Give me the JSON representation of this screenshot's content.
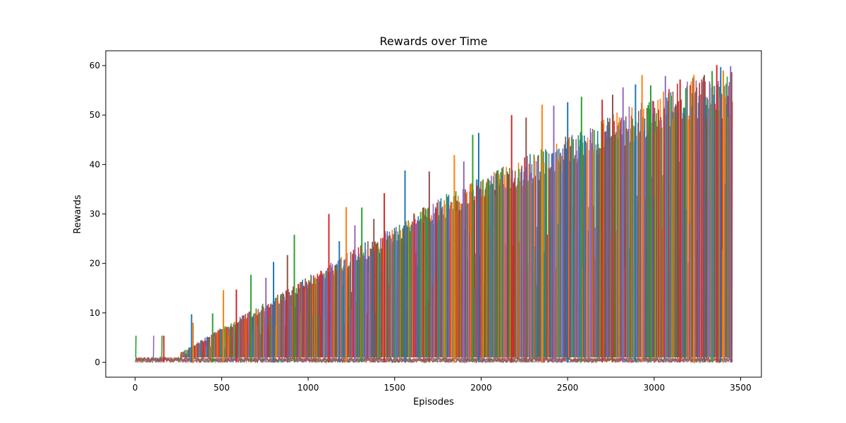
{
  "chart_data": {
    "type": "line",
    "title": "Rewards over Time",
    "xlabel": "Episodes",
    "ylabel": "Rewards",
    "xlim": [
      -170,
      3620
    ],
    "ylim": [
      -3,
      63
    ],
    "xticks": [
      0,
      500,
      1000,
      1500,
      2000,
      2500,
      3000,
      3500
    ],
    "xtick_labels": [
      "0",
      "500",
      "1000",
      "1500",
      "2000",
      "2500",
      "3000",
      "3500"
    ],
    "yticks": [
      0,
      10,
      20,
      30,
      40,
      50,
      60
    ],
    "ytick_labels": [
      "0",
      "10",
      "20",
      "30",
      "40",
      "50",
      "60"
    ],
    "grid": false,
    "legend": "none",
    "colors": [
      "#1f77b4",
      "#ff7f0e",
      "#2ca02c",
      "#d62728",
      "#9467bd",
      "#8c564b"
    ],
    "episode_range": [
      0,
      3450
    ],
    "baseline_band": [
      0,
      1
    ],
    "series": [
      {
        "color": "#1f77b4",
        "spikes": [
          [
            326,
            9.7
          ],
          [
            800,
            20.3
          ],
          [
            1180,
            24.5
          ],
          [
            1560,
            38.8
          ],
          [
            1986,
            46.4
          ],
          [
            2500,
            52.6
          ],
          [
            2892,
            56.2
          ],
          [
            3385,
            59.7
          ]
        ]
      },
      {
        "color": "#ff7f0e",
        "spikes": [
          [
            335,
            8.0
          ],
          [
            510,
            14.6
          ],
          [
            1220,
            31.4
          ],
          [
            1845,
            41.9
          ],
          [
            2352,
            52.1
          ],
          [
            2930,
            58.1
          ],
          [
            3230,
            58.1
          ],
          [
            3400,
            59.0
          ]
        ]
      },
      {
        "color": "#2ca02c",
        "spikes": [
          [
            448,
            9.9
          ],
          [
            669,
            17.7
          ],
          [
            920,
            25.8
          ],
          [
            1310,
            31.3
          ],
          [
            1951,
            46.0
          ],
          [
            2580,
            53.7
          ],
          [
            2980,
            56.0
          ],
          [
            3335,
            58.9
          ]
        ]
      },
      {
        "color": "#d62728",
        "spikes": [
          [
            166,
            5.4
          ],
          [
            585,
            14.7
          ],
          [
            1120,
            30.0
          ],
          [
            1440,
            34.2
          ],
          [
            2176,
            50.0
          ],
          [
            2700,
            53.1
          ],
          [
            3150,
            57.2
          ],
          [
            3362,
            60.1
          ]
        ]
      },
      {
        "color": "#9467bd",
        "spikes": [
          [
            756,
            17.1
          ],
          [
            1270,
            27.7
          ],
          [
            1900,
            40.6
          ],
          [
            2420,
            51.9
          ],
          [
            2820,
            55.6
          ],
          [
            3065,
            57.9
          ],
          [
            3442,
            59.9
          ]
        ]
      },
      {
        "color": "#8c564b",
        "spikes": [
          [
            880,
            21.7
          ],
          [
            1380,
            29.0
          ],
          [
            1700,
            38.6
          ],
          [
            2260,
            49.5
          ],
          [
            2760,
            54.1
          ],
          [
            3290,
            58.1
          ],
          [
            3448,
            58.7
          ]
        ]
      }
    ]
  }
}
